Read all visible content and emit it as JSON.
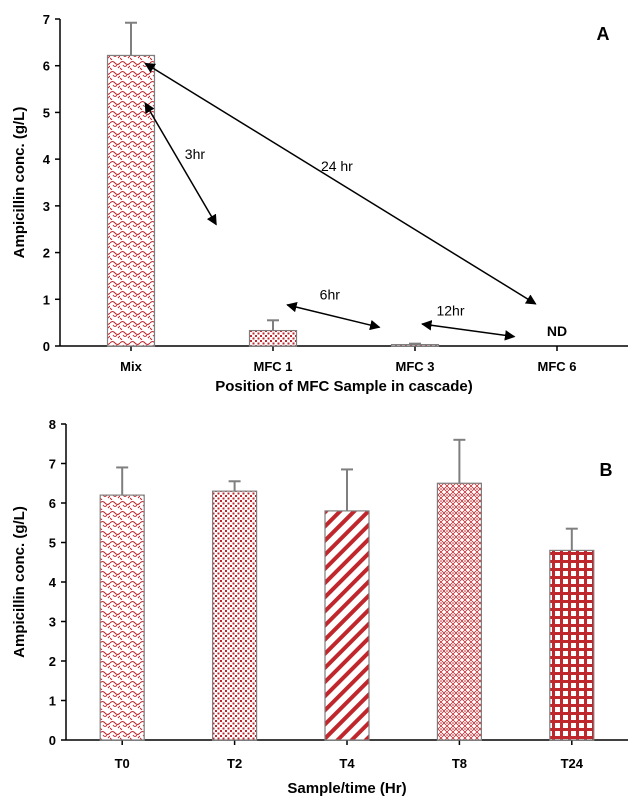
{
  "colors": {
    "bar_pattern": "#c0272d",
    "bar_outline": "#7f7f7f",
    "axis": "#000000",
    "error_bar": "#7f7f7f"
  },
  "chart_data": [
    {
      "type": "bar",
      "panel_label": "A",
      "categories": [
        "Mix",
        "MFC 1",
        "MFC 3",
        "MFC 6"
      ],
      "values": [
        6.22,
        0.33,
        0.03,
        0
      ],
      "errors": [
        0.7,
        0.22,
        0.02,
        0
      ],
      "patterns": [
        "weave",
        "dots",
        "dots",
        "none"
      ],
      "value_labels": [
        "",
        "",
        "",
        "ND"
      ],
      "xlabel": "Position of MFC Sample in cascade)",
      "ylabel": "Ampicillin conc. (g/L)",
      "ylim": [
        0,
        7
      ],
      "yticks": [
        0,
        1,
        2,
        3,
        4,
        5,
        6,
        7
      ],
      "grid": false,
      "annotations": [
        {
          "text": "3hr",
          "x": 0.45,
          "y": 4.0,
          "from": [
            0.1,
            5.2
          ],
          "to": [
            0.6,
            2.6
          ]
        },
        {
          "text": "24 hr",
          "x": 1.45,
          "y": 3.75,
          "from": [
            0.1,
            6.05
          ],
          "to": [
            2.85,
            0.9
          ]
        },
        {
          "text": "6hr",
          "x": 1.4,
          "y": 1.0,
          "from": [
            1.1,
            0.88
          ],
          "to": [
            1.75,
            0.4
          ]
        },
        {
          "text": "12hr",
          "x": 2.25,
          "y": 0.65,
          "from": [
            2.05,
            0.47
          ],
          "to": [
            2.7,
            0.2
          ]
        }
      ]
    },
    {
      "type": "bar",
      "panel_label": "B",
      "categories": [
        "T0",
        "T2",
        "T4",
        "T8",
        "T24"
      ],
      "values": [
        6.2,
        6.3,
        5.8,
        6.5,
        4.8
      ],
      "errors": [
        0.7,
        0.25,
        1.05,
        1.1,
        0.55
      ],
      "patterns": [
        "weave",
        "dots",
        "stripes",
        "diamond",
        "check"
      ],
      "xlabel": "Sample/time (Hr)",
      "ylabel": "Ampicillin conc. (g/L)",
      "ylim": [
        0,
        8
      ],
      "yticks": [
        0,
        1,
        2,
        3,
        4,
        5,
        6,
        7,
        8
      ],
      "grid": false
    }
  ]
}
